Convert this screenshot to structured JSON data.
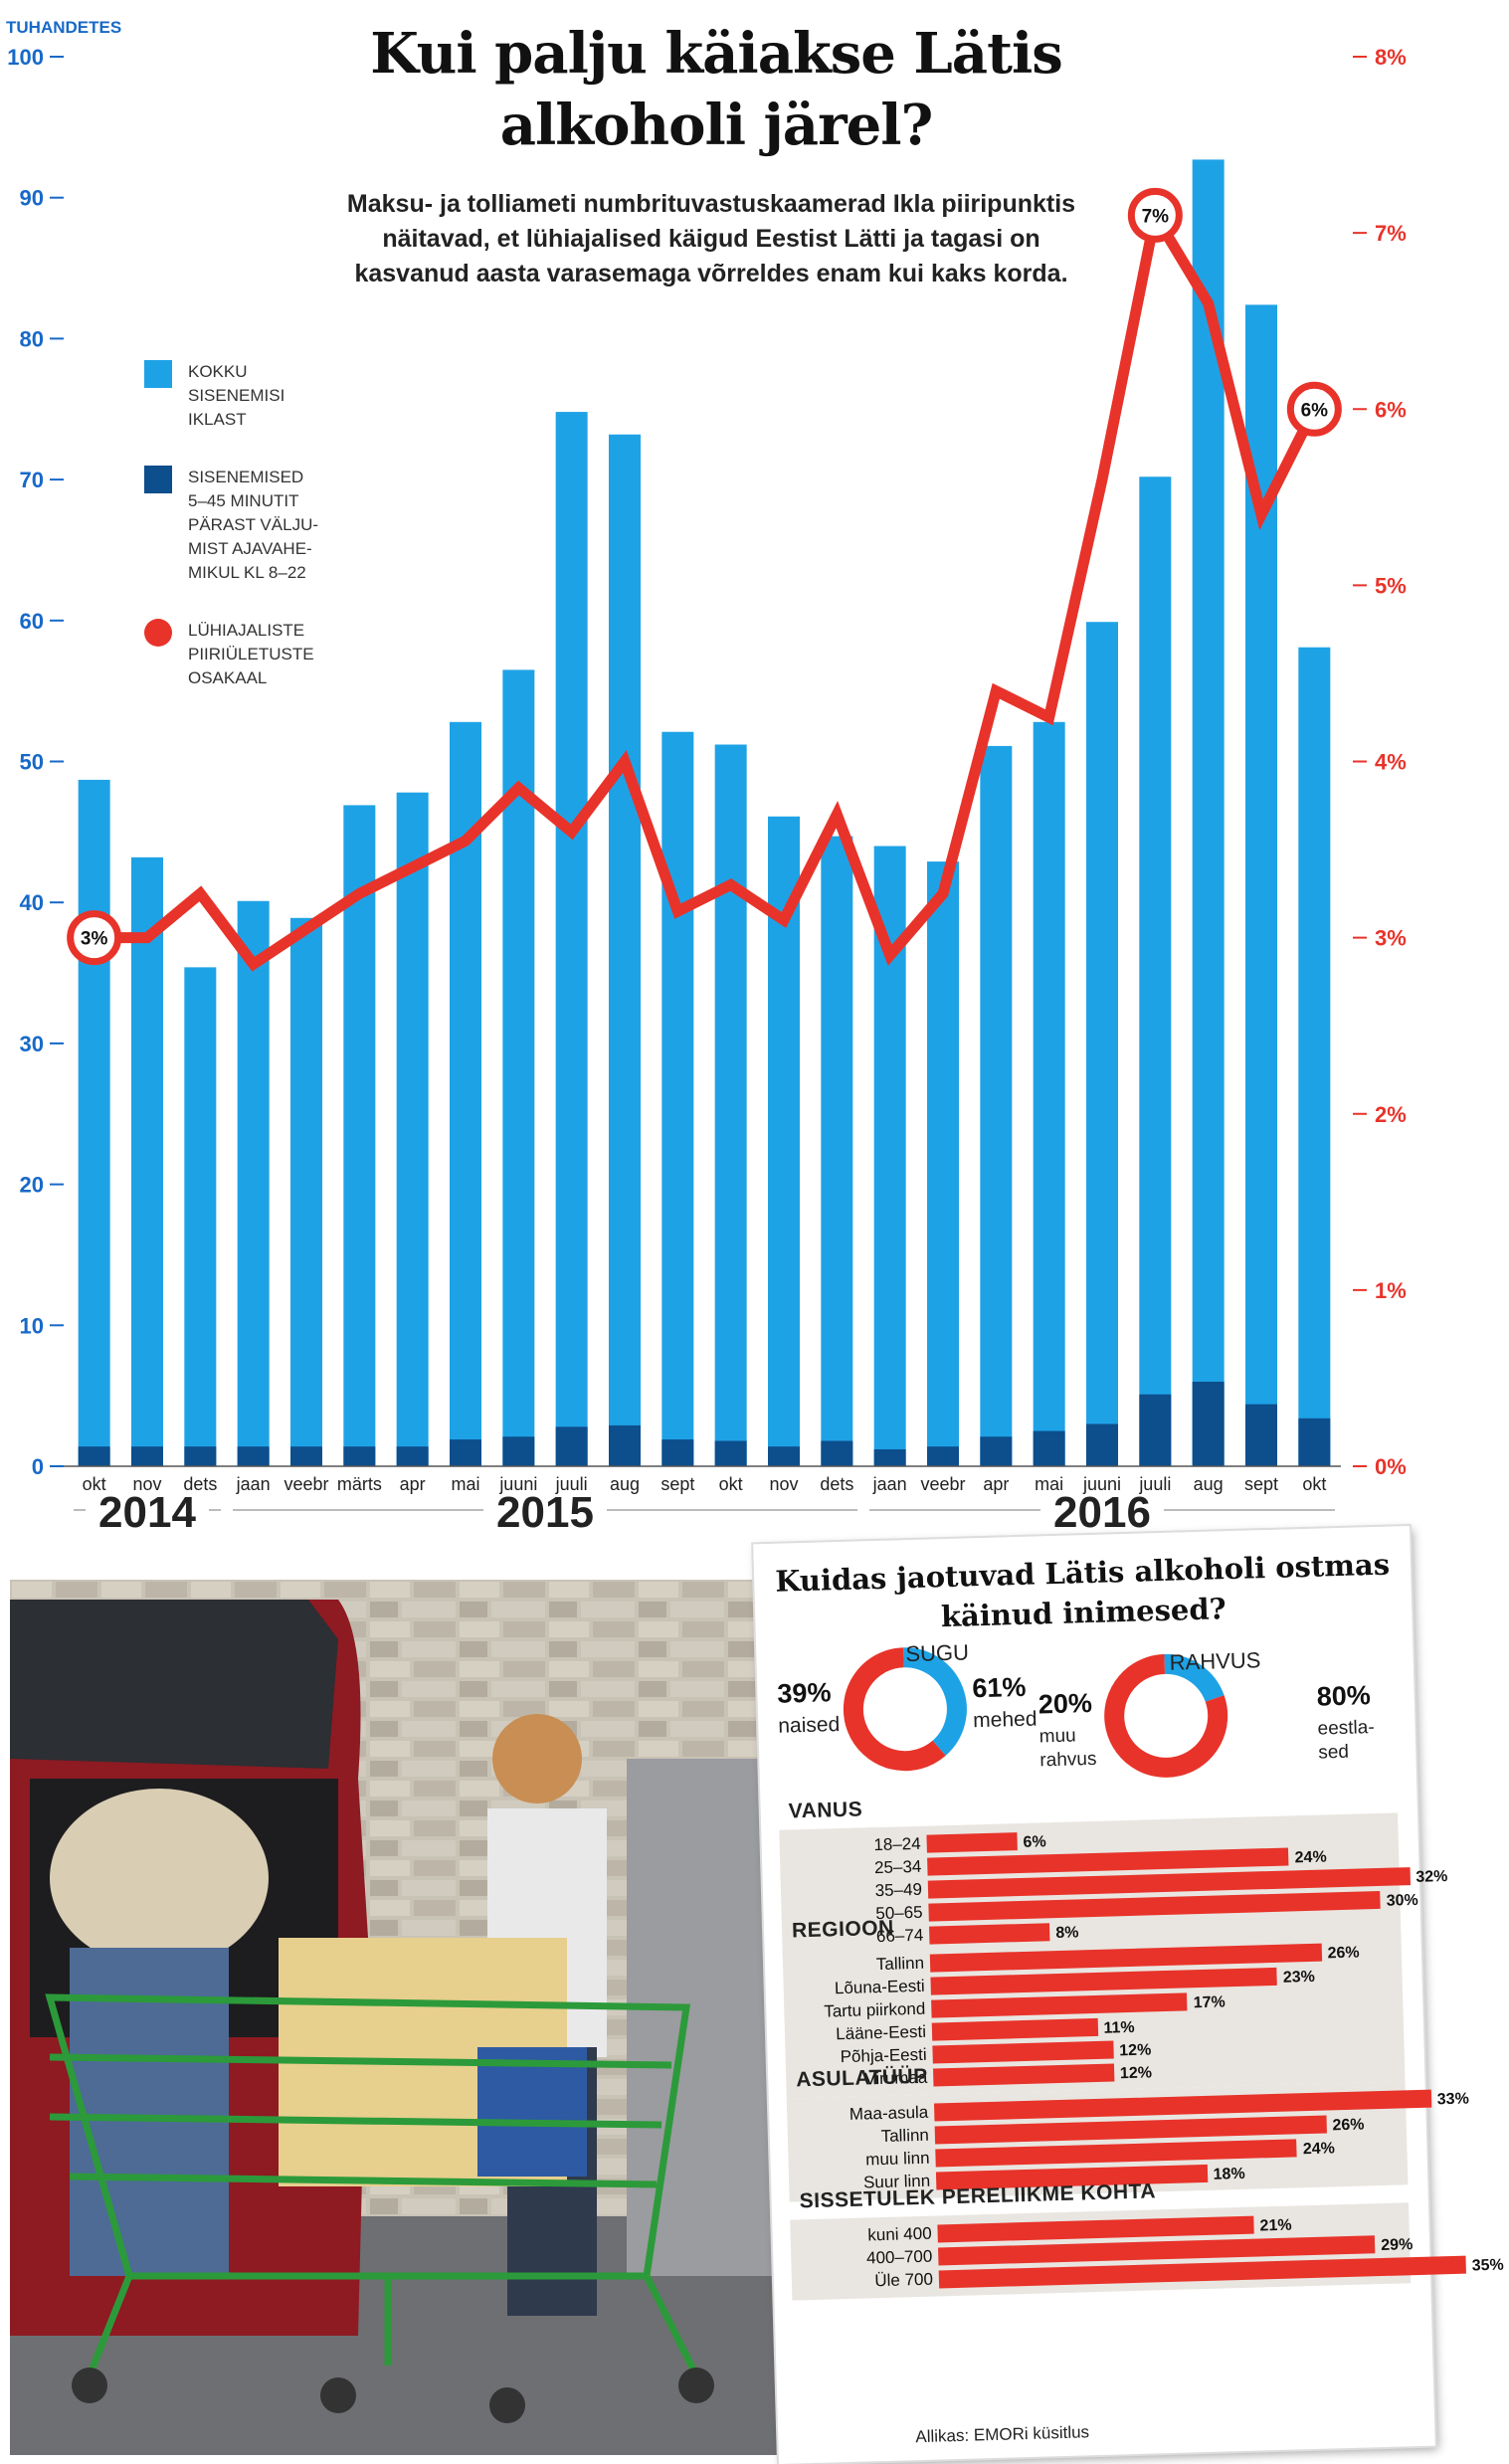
{
  "header": {
    "title_line1": "Kui palju käiakse Lätis",
    "title_line2": "alkoholi järel?",
    "subtitle": "Maksu- ja tolliameti numbrituvastuskaamerad Ikla piiripunktis näitavad, et lühiajalised käigud Eestist Lätti ja tagasi on kasvanud aasta varasemaga võrreldes enam kui kaks korda."
  },
  "legend": {
    "total": "KOKKU\nSISENEMISI\nIKLAST",
    "short": "SISENEMISED\n5–45 MINUTIT\nPÄRAST VÄLJU-\nMIST AJAVAHE-\nMIKUL KL 8–22",
    "share": "LÜHIAJALISTE\nPIIRIÜLETUSTE\nOSAKAAL"
  },
  "colors": {
    "bar_total": "#1ea2e6",
    "bar_short": "#0d4e8c",
    "line_share": "#e8332a",
    "axis_left": "#1769c8",
    "panel_bar": "#e8332a",
    "panel_bg": "#e9e6e1"
  },
  "chart_data": [
    {
      "type": "bar",
      "unit_label": "TUHANDETES",
      "categories": [
        "okt",
        "nov",
        "dets",
        "jaan",
        "veebr",
        "märts",
        "apr",
        "mai",
        "juuni",
        "juuli",
        "aug",
        "sept",
        "okt",
        "nov",
        "dets",
        "jaan",
        "veebr",
        "apr",
        "mai",
        "juuni",
        "juuli",
        "aug",
        "sept",
        "okt"
      ],
      "year_labels": [
        {
          "label": "2014",
          "from": 0,
          "to": 2
        },
        {
          "label": "2015",
          "from": 3,
          "to": 14
        },
        {
          "label": "2016",
          "from": 15,
          "to": 23
        }
      ],
      "series": [
        {
          "name": "KOKKU SISENEMISI IKLAST",
          "axis": "left",
          "values": [
            48.7,
            43.2,
            35.4,
            40.1,
            38.9,
            46.9,
            47.8,
            52.8,
            56.5,
            74.8,
            73.2,
            52.1,
            51.2,
            46.1,
            44.7,
            44.0,
            42.9,
            51.1,
            52.8,
            59.9,
            70.2,
            92.7,
            82.4,
            58.1
          ]
        },
        {
          "name": "SISENEMISED 5–45 MINUTIT PÄRAST VÄLJUMIST AJAVAHEMIKUL KL 8–22",
          "axis": "left",
          "values": [
            1.4,
            1.4,
            1.4,
            1.4,
            1.4,
            1.4,
            1.4,
            1.9,
            2.1,
            2.8,
            2.9,
            1.9,
            1.8,
            1.4,
            1.8,
            1.2,
            1.4,
            2.1,
            2.5,
            3.0,
            5.1,
            6.0,
            4.4,
            3.4
          ]
        },
        {
          "name": "LÜHIAJALISTE PIIRIÜLETUSTE OSAKAAL",
          "type": "line",
          "axis": "right",
          "values": [
            3.0,
            3.0,
            3.25,
            2.85,
            3.05,
            3.25,
            3.4,
            3.55,
            3.85,
            3.6,
            4.0,
            3.15,
            3.3,
            3.1,
            3.7,
            2.9,
            3.25,
            4.4,
            4.25,
            5.6,
            7.1,
            6.6,
            5.4,
            6.0
          ]
        }
      ],
      "annotations": [
        {
          "index": 0,
          "label": "3%"
        },
        {
          "index": 20,
          "label": "7%"
        },
        {
          "index": 23,
          "label": "6%"
        }
      ],
      "ylim_left": [
        0,
        100
      ],
      "yticks_left": [
        "0",
        "10",
        "20",
        "30",
        "40",
        "50",
        "60",
        "70",
        "80",
        "90",
        "100"
      ],
      "ylim_right": [
        0,
        8
      ],
      "yticks_right": [
        "0%",
        "1%",
        "2%",
        "3%",
        "4%",
        "5%",
        "6%",
        "7%",
        "8%"
      ],
      "grid": false
    },
    {
      "type": "pie",
      "title": "Kuidas jaotuvad Lätis alkoholi ostmas käinud inimesed?",
      "charts": [
        {
          "name": "SUGU",
          "slices": [
            {
              "label": "naised",
              "pct": "39%",
              "value": 39,
              "color": "#1ea2e6"
            },
            {
              "label": "mehed",
              "pct": "61%",
              "value": 61,
              "color": "#e8332a"
            }
          ]
        },
        {
          "name": "RAHVUS",
          "slices": [
            {
              "label": "muu\nrahvus",
              "pct": "20%",
              "value": 20,
              "color": "#1ea2e6"
            },
            {
              "label": "eestla-\nsed",
              "pct": "80%",
              "value": 80,
              "color": "#e8332a"
            }
          ]
        }
      ]
    },
    {
      "type": "bar",
      "orientation": "horizontal",
      "sections": [
        {
          "title": "VANUS",
          "rows": [
            {
              "label": "18–24",
              "value": 6,
              "text": "6%"
            },
            {
              "label": "25–34",
              "value": 24,
              "text": "24%"
            },
            {
              "label": "35–49",
              "value": 32,
              "text": "32%"
            },
            {
              "label": "50–65",
              "value": 30,
              "text": "30%"
            },
            {
              "label": "66–74",
              "value": 8,
              "text": "8%"
            }
          ]
        },
        {
          "title": "REGIOON",
          "rows": [
            {
              "label": "Tallinn",
              "value": 26,
              "text": "26%"
            },
            {
              "label": "Lõuna-Eesti",
              "value": 23,
              "text": "23%"
            },
            {
              "label": "Tartu piirkond",
              "value": 17,
              "text": "17%"
            },
            {
              "label": "Lääne-Eesti",
              "value": 11,
              "text": "11%"
            },
            {
              "label": "Põhja-Eesti",
              "value": 12,
              "text": "12%"
            },
            {
              "label": "Virumaa",
              "value": 12,
              "text": "12%"
            }
          ]
        },
        {
          "title": "ASULATÜÜP",
          "rows": [
            {
              "label": "Maa-asula",
              "value": 33,
              "text": "33%"
            },
            {
              "label": "Tallinn",
              "value": 26,
              "text": "26%"
            },
            {
              "label": "muu linn",
              "value": 24,
              "text": "24%"
            },
            {
              "label": "Suur linn",
              "value": 18,
              "text": "18%"
            }
          ]
        },
        {
          "title": "SISSETULEK PERELIIKME KOHTA",
          "rows": [
            {
              "label": "kuni 400",
              "value": 21,
              "text": "21%"
            },
            {
              "label": "400–700",
              "value": 29,
              "text": "29%"
            },
            {
              "label": "Üle 700",
              "value": 35,
              "text": "35%"
            }
          ]
        }
      ],
      "xlim": [
        0,
        35
      ],
      "source": "Allikas: EMORi küsitlus"
    }
  ]
}
